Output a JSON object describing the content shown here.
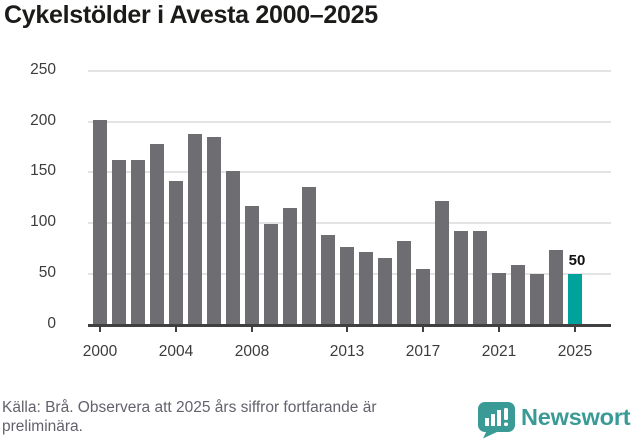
{
  "title": "Cykelstölder i Avesta 2000–2025",
  "footer": {
    "source_note": "Källa: Brå. Observera att 2025 års siffror fortfarande är preliminära."
  },
  "branding": {
    "logo_text": "Newsworthy",
    "logo_icon": "newsworthy-chart-bubble-icon"
  },
  "colors": {
    "bar": "#6d6d72",
    "highlight": "#00a39b",
    "gridline": "#e4e4e4",
    "axis": "#404040",
    "title_text": "#1b1b19",
    "tick_text": "#3c3c3c",
    "annotation_text": "#111111",
    "footer_text": "#62626d",
    "brand_teal": "#3a9b96"
  },
  "chart_data": {
    "type": "bar",
    "title": "Cykelstölder i Avesta 2000–2025",
    "x": [
      2000,
      2001,
      2002,
      2003,
      2004,
      2005,
      2006,
      2007,
      2008,
      2009,
      2010,
      2011,
      2012,
      2013,
      2014,
      2015,
      2016,
      2017,
      2018,
      2019,
      2020,
      2021,
      2022,
      2023,
      2024,
      2025
    ],
    "values": [
      201,
      162,
      162,
      178,
      141,
      188,
      185,
      151,
      117,
      99,
      115,
      135,
      88,
      76,
      71,
      66,
      82,
      55,
      122,
      92,
      92,
      51,
      59,
      50,
      73,
      50
    ],
    "highlight_index": 25,
    "annotation": {
      "year": 2025,
      "label": "50"
    },
    "xlabel": "",
    "ylabel": "",
    "ylim": [
      0,
      250
    ],
    "yticks": [
      0,
      50,
      100,
      150,
      200,
      250
    ],
    "xticks": [
      2000,
      2004,
      2008,
      2013,
      2017,
      2021,
      2025
    ],
    "grid": true,
    "legend": false
  }
}
